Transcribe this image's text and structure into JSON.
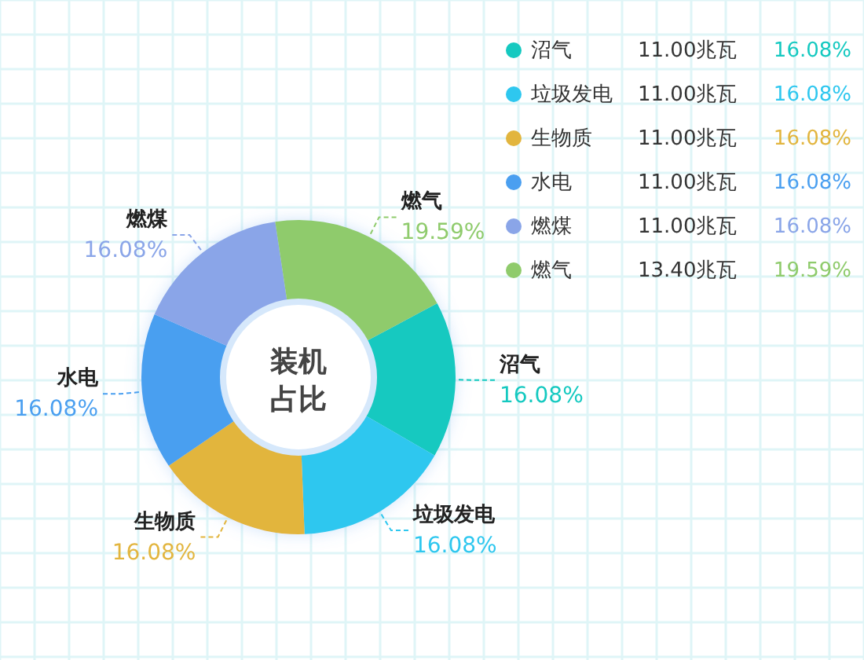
{
  "chart_data": {
    "type": "donut",
    "title": "装机占比",
    "categories": [
      "沼气",
      "垃圾发电",
      "生物质",
      "水电",
      "燃煤",
      "燃气"
    ],
    "values": [
      11.0,
      11.0,
      11.0,
      11.0,
      11.0,
      13.4
    ],
    "colors": [
      "#14c9c0",
      "#2ec7ef",
      "#e2b53e",
      "#4a9ff0",
      "#8aa5e8",
      "#8fcb6c"
    ],
    "value_labels": [
      "11.00兆瓦",
      "11.00兆瓦",
      "11.00兆瓦",
      "11.00兆瓦",
      "11.00兆瓦",
      "13.40兆瓦"
    ],
    "annotations": [
      "16.08%",
      "16.08%",
      "16.08%",
      "16.08%",
      "16.08%",
      "19.59%"
    ],
    "legend": "right"
  }
}
